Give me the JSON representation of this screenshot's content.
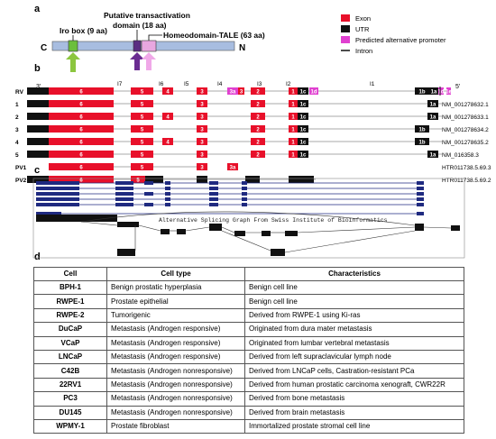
{
  "panels": {
    "a": "a",
    "b": "b",
    "c": "c",
    "d": "d"
  },
  "panel_a": {
    "c_label": "C",
    "n_label": "N",
    "iro_box": "Iro box (9 aa)",
    "transactivation_line1": "Putative transactivation",
    "transactivation_line2": "domain (18 aa)",
    "homeodomain": "Homeodomain-TALE (63 aa)",
    "colors": {
      "protein": "#a8bde0",
      "iro": "#6bbf3c",
      "transactivation": "#5a2d82",
      "homeodomain": "#e8a7e0",
      "green_arrow": "#8cc63f",
      "purple_arrow": "#6a2c91",
      "pink_arrow": "#f0a8e8"
    }
  },
  "legend": [
    {
      "label": "Exon",
      "color": "#e8102a",
      "kind": "box"
    },
    {
      "label": "UTR",
      "color": "#111111",
      "kind": "box"
    },
    {
      "label": "Predicted alternative promoter",
      "color": "#e040d0",
      "kind": "box"
    },
    {
      "label": "Intron",
      "color": "#111111",
      "kind": "line"
    }
  ],
  "panel_b": {
    "end_3": "3'",
    "end_5": "5'",
    "introns": [
      "I7",
      "I6",
      "I5",
      "I4",
      "I3",
      "I2",
      "I1"
    ],
    "rows": [
      {
        "label": "RV",
        "accession": ""
      },
      {
        "label": "1",
        "accession": "NM_001278632.1"
      },
      {
        "label": "2",
        "accession": "NM_001278633.1"
      },
      {
        "label": "3",
        "accession": "NM_001278634.2"
      },
      {
        "label": "4",
        "accession": "NM_001278635.2"
      },
      {
        "label": "5",
        "accession": "NM_016358.3"
      },
      {
        "label": "PV1",
        "accession": "HTR011738.5.69.3"
      },
      {
        "label": "PV2",
        "accession": "HTR011738.5.69.2"
      }
    ],
    "exon_labels": {
      "e6": "6",
      "e5": "5",
      "e4": "4",
      "e3": "3",
      "e3a": "3a",
      "e2": "2",
      "e1": "1",
      "e1c": "1c",
      "e1b": "1b",
      "e1a": "1a",
      "e1d": "1d",
      "e1e": "1e",
      "e2p": "2"
    }
  },
  "panel_c": {
    "caption": "Alternative Splicing Graph From Swiss Institute of Bioinformatics"
  },
  "panel_d": {
    "headers": [
      "Cell",
      "Cell type",
      "Characteristics"
    ],
    "rows": [
      [
        "BPH-1",
        "Benign prostatic hyperplasia",
        "Benign cell line"
      ],
      [
        "RWPE-1",
        "Prostate epithelial",
        "Benign cell line"
      ],
      [
        "RWPE-2",
        "Tumorigenic",
        "Derived from RWPE-1 using Ki-ras"
      ],
      [
        "DuCaP",
        "Metastasis (Androgen responsive)",
        "Originated from dura mater metastasis"
      ],
      [
        "VCaP",
        "Metastasis (Androgen responsive)",
        "Originated from lumbar vertebral metastasis"
      ],
      [
        "LNCaP",
        "Metastasis (Androgen responsive)",
        "Derived from left supraclavicular lymph node"
      ],
      [
        "C42B",
        "Metastasis (Androgen nonresponsive)",
        "Derived from LNCaP cells, Castration-resistant PCa"
      ],
      [
        "22RV1",
        "Metastasis (Androgen nonresponsive)",
        "Derived from human prostatic carcinoma xenograft, CWR22R"
      ],
      [
        "PC3",
        "Metastasis (Androgen nonresponsive)",
        "Derived from bone metastasis"
      ],
      [
        "DU145",
        "Metastasis (Androgen nonresponsive)",
        "Derived from brain metastasis"
      ],
      [
        "WPMY-1",
        "Prostate fibroblast",
        "Immortalized prostate stromal cell line"
      ]
    ]
  }
}
